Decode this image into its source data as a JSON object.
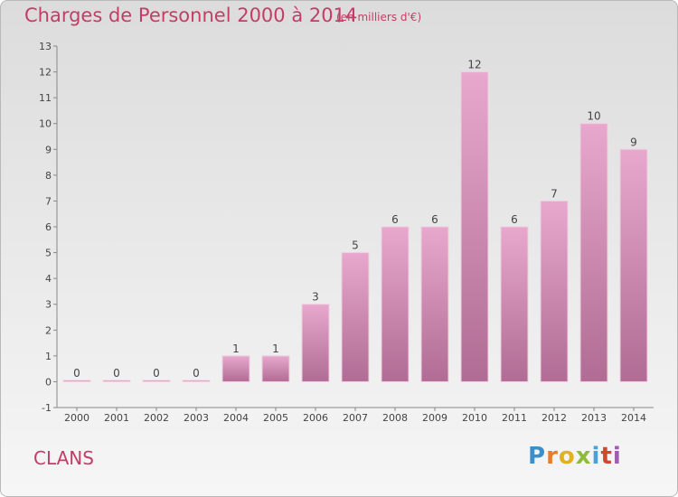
{
  "header": {
    "title": "Charges de Personnel 2000 à 2014",
    "unit": "(en milliers d'€)"
  },
  "footer": {
    "place": "CLANS",
    "logo": "Proxiti"
  },
  "colors": {
    "bar_top": "#e8a8cd",
    "bar_bottom": "#b06c94",
    "title": "#c23e66"
  },
  "chart_data": {
    "type": "bar",
    "title": "Charges de Personnel 2000 à 2014",
    "subtitle": "(en milliers d'€)",
    "categories": [
      "2000",
      "2001",
      "2002",
      "2003",
      "2004",
      "2005",
      "2006",
      "2007",
      "2008",
      "2009",
      "2010",
      "2011",
      "2012",
      "2013",
      "2014"
    ],
    "values": [
      0,
      0,
      0,
      0,
      1,
      1,
      3,
      5,
      6,
      6,
      12,
      6,
      7,
      10,
      9
    ],
    "ylim": [
      -1,
      13
    ],
    "yticks": [
      -1,
      0,
      1,
      2,
      3,
      4,
      5,
      6,
      7,
      8,
      9,
      10,
      11,
      12,
      13
    ],
    "grid": false,
    "data_labels": true
  }
}
